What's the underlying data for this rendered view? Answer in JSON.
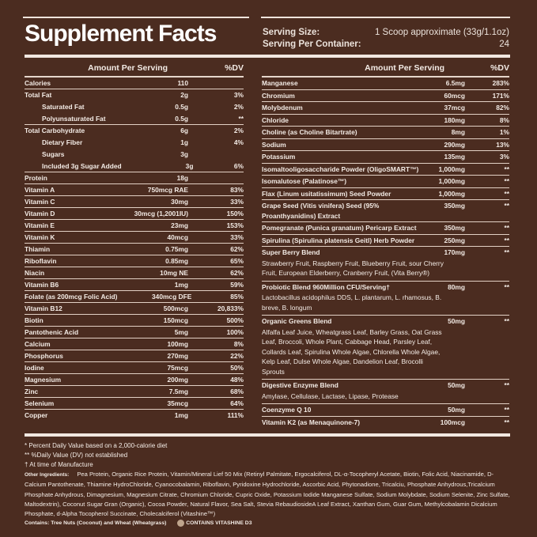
{
  "title": "Supplement Facts",
  "serving": {
    "size_label": "Serving Size:",
    "size_value": "1 Scoop approximate (33g/1.1oz)",
    "per_container_label": "Serving Per Container:",
    "per_container_value": "24"
  },
  "header": {
    "amount": "Amount Per Serving",
    "dv": "%DV"
  },
  "left_rows": [
    {
      "name": "Calories",
      "amount": "110",
      "dv": ""
    },
    {
      "name": "Total Fat",
      "amount": "2g",
      "dv": "3%"
    },
    {
      "name": "Saturated Fat",
      "amount": "0.5g",
      "dv": "2%",
      "sub": true
    },
    {
      "name": "Polyunsaturated Fat",
      "amount": "0.5g",
      "dv": "**",
      "sub": true
    },
    {
      "name": "Total Carbohydrate",
      "amount": "6g",
      "dv": "2%"
    },
    {
      "name": "Dietary Fiber",
      "amount": "1g",
      "dv": "4%",
      "sub": true
    },
    {
      "name": "Sugars",
      "amount": "3g",
      "dv": "",
      "sub": true
    },
    {
      "name": "Included 3g Sugar Added",
      "amount": "3g",
      "dv": "6%",
      "sub": true
    },
    {
      "name": "Protein",
      "amount": "18g",
      "dv": ""
    },
    {
      "name": "Vitamin A",
      "amount": "750mcg RAE",
      "dv": "83%"
    },
    {
      "name": "Vitamin C",
      "amount": "30mg",
      "dv": "33%"
    },
    {
      "name": "Vitamin D",
      "amount": "30mcg (1,2001IU)",
      "dv": "150%"
    },
    {
      "name": "Vitamin E",
      "amount": "23mg",
      "dv": "153%"
    },
    {
      "name": "Vitamin K",
      "amount": "40mcg",
      "dv": "33%"
    },
    {
      "name": "Thiamin",
      "amount": "0.75mg",
      "dv": "62%"
    },
    {
      "name": "Riboflavin",
      "amount": "0.85mg",
      "dv": "65%"
    },
    {
      "name": "Niacin",
      "amount": "10mg NE",
      "dv": "62%"
    },
    {
      "name": "Vitamin B6",
      "amount": "1mg",
      "dv": "59%"
    },
    {
      "name": "Folate (as 200mcg Folic Acid)",
      "amount": "340mcg DFE",
      "dv": "85%"
    },
    {
      "name": "Vitamin B12",
      "amount": "500mcg",
      "dv": "20,833%"
    },
    {
      "name": "Biotin",
      "amount": "150mcg",
      "dv": "500%"
    },
    {
      "name": "Pantothenic Acid",
      "amount": "5mg",
      "dv": "100%"
    },
    {
      "name": "Calcium",
      "amount": "100mg",
      "dv": "8%"
    },
    {
      "name": "Phosphorus",
      "amount": "270mg",
      "dv": "22%"
    },
    {
      "name": "Iodine",
      "amount": "75mcg",
      "dv": "50%"
    },
    {
      "name": "Magnesium",
      "amount": "200mg",
      "dv": "48%"
    },
    {
      "name": "Zinc",
      "amount": "7.5mg",
      "dv": "68%"
    },
    {
      "name": "Selenium",
      "amount": "35mcg",
      "dv": "64%"
    },
    {
      "name": "Copper",
      "amount": "1mg",
      "dv": "111%"
    }
  ],
  "right_rows": [
    {
      "name": "Manganese",
      "amount": "6.5mg",
      "dv": "283%"
    },
    {
      "name": "Chromium",
      "amount": "60mcg",
      "dv": "171%"
    },
    {
      "name": "Molybdenum",
      "amount": "37mcg",
      "dv": "82%"
    },
    {
      "name": "Chloride",
      "amount": "180mg",
      "dv": "8%"
    },
    {
      "name": "Choline (as Choline Bitartrate)",
      "amount": "8mg",
      "dv": "1%"
    },
    {
      "name": "Sodium",
      "amount": "290mg",
      "dv": "13%"
    },
    {
      "name": "Potassium",
      "amount": "135mg",
      "dv": "3%"
    },
    {
      "name": "Isomaltooligosaccharide Powder (OligoSMART™)",
      "amount": "1,000mg",
      "dv": "**"
    },
    {
      "name": "Isomalutose (Palatinose™)",
      "amount": "1,000mg",
      "dv": "**"
    },
    {
      "name": "Flax (Linum usitatissimum) Seed Powder",
      "amount": "1,000mg",
      "dv": "**"
    },
    {
      "name": "Grape Seed (Vitis vinifera) Seed (95% Proanthyanidins) Extract",
      "amount": "350mg",
      "dv": "**"
    },
    {
      "name": "Pomegranate (Punica granatum) Pericarp Extract",
      "amount": "350mg",
      "dv": "**"
    },
    {
      "name": "Spirulina (Spirulina platensis Geitl) Herb Powder",
      "amount": "250mg",
      "dv": "**"
    },
    {
      "name": "Super Berry Blend",
      "amount": "170mg",
      "dv": "**",
      "desc": "Strawberry Fruit, Raspberry Fruit, Blueberry Fruit, sour Cherry Fruit, European Elderberry, Cranberry Fruit, (Vita Berry®)"
    },
    {
      "name": "Probiotic Blend 960Million CFU/Serving†",
      "amount": "80mg",
      "dv": "**",
      "desc": "Lactobacillus acidophilus DDS, L. plantarum, L. rhamosus, B. breve, B. longum"
    },
    {
      "name": "Organic Greens Blend",
      "amount": "50mg",
      "dv": "**",
      "desc": "Alfalfa Leaf Juice, Wheatgrass Leaf, Barley Grass, Oat Grass Leaf, Broccoli, Whole Plant, Cabbage Head, Parsley Leaf, Collards Leaf, Spirulina Whole Algae, Chlorella Whole Algae, Kelp Leaf, Dulse Whole Algae, Dandelion Leaf, Brocolli Sprouts"
    },
    {
      "name": "Digestive Enzyme Blend",
      "amount": "50mg",
      "dv": "**",
      "desc": "Amylase, Cellulase, Lactase, Lipase, Protease"
    },
    {
      "name": "Coenzyme Q 10",
      "amount": "50mg",
      "dv": "**"
    },
    {
      "name": "Vitamin K2 (as Menaquinone-7)",
      "amount": "100mcg",
      "dv": "**"
    }
  ],
  "footer": {
    "note1": "* Percent Daily Value based on a 2,000-calorie diet",
    "note2": "** %Daily Value (DV) not established",
    "note3": "† At time of Manufacture",
    "other_label": "Other Ingredients:",
    "other_text": "Pea Protein, Organic Rice Protein, Vitamin/Mineral Lief 50 Mix (Retinyl Palmitate, Ergocalciferol, DL-α-Tocopheryl Acetate, Biotin, Folic Acid, Niacinamide, D-Calcium Pantothenate, Thiamine HydroChloride, Cyanocobalamin, Riboflavin, Pyridoxine Hydrochloride, Ascorbic Acid, Phytonadione, Tricalciu, Phosphate Anhydrous,Tricalcium Phosphate Anhydrous, Dimagnesium, Magnesium Citrate, Chromium Chloride, Cupric Oxide, Potassium Iodide Manganese Sulfate, Sodium Molybdate, Sodium Selenite, Zinc Sulfate, Maltodextrin), Coconut Sugar Gran (Organic), Cocoa Powder, Natural Flavor, Sea Salt, Stevia RebaudiosideA Leaf Extract, Xanthan Gum, Guar Gum, Methylcobalamin Dicalcium Phosphate, d-Alpha Tocopherol Succinate, Cholecalciferol (Vitashine™)",
    "allergens": "Contains: Tree Nuts (Coconut) and Wheat (Wheatgrass)",
    "vitashine": "CONTAINS VITASHINE D3"
  }
}
